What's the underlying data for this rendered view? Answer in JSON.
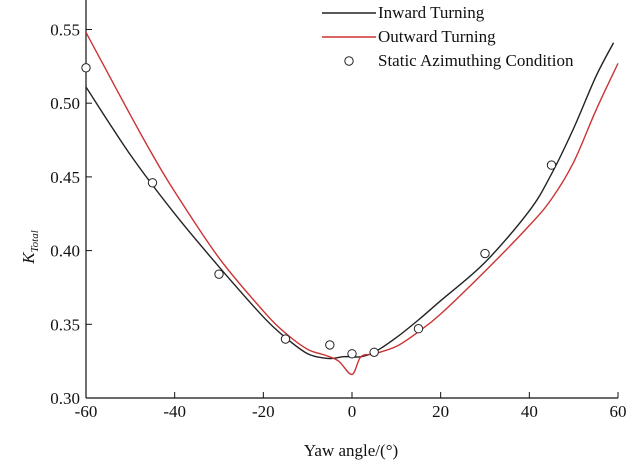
{
  "chart_data": {
    "type": "line",
    "xlabel": "Yaw angle/(°)",
    "ylabel_main": "K",
    "ylabel_sub": "Total",
    "xlim": [
      -60,
      60
    ],
    "ylim": [
      0.3,
      0.57
    ],
    "xticks": [
      -60,
      -40,
      -20,
      0,
      20,
      40,
      60
    ],
    "yticks": [
      0.3,
      0.35,
      0.4,
      0.45,
      0.5,
      0.55
    ],
    "xtick_labels": [
      "-60",
      "-40",
      "-20",
      "0",
      "20",
      "40",
      "60"
    ],
    "ytick_labels": [
      "0.30",
      "0.35",
      "0.40",
      "0.45",
      "0.50",
      "0.55"
    ],
    "grid": false,
    "legend_position": "top-right",
    "series": [
      {
        "name": "Inward Turning",
        "style": "line",
        "color": "#222222",
        "x": [
          -60,
          -50,
          -40,
          -30,
          -20,
          -15,
          -10,
          -6,
          -4,
          -2,
          0,
          2,
          5,
          10,
          15,
          20,
          30,
          40,
          45,
          50,
          55,
          59
        ],
        "y": [
          0.511,
          0.465,
          0.425,
          0.389,
          0.355,
          0.341,
          0.33,
          0.327,
          0.327,
          0.328,
          0.328,
          0.328,
          0.331,
          0.341,
          0.353,
          0.366,
          0.392,
          0.427,
          0.452,
          0.483,
          0.518,
          0.541
        ]
      },
      {
        "name": "Outward Turning",
        "style": "line",
        "color": "#cc3333",
        "x": [
          -60,
          -55,
          -50,
          -45,
          -40,
          -30,
          -20,
          -15,
          -10,
          -6,
          -3,
          0,
          2,
          5,
          10,
          15,
          20,
          30,
          40,
          45,
          50,
          55,
          60
        ],
        "y": [
          0.548,
          0.52,
          0.492,
          0.465,
          0.44,
          0.395,
          0.359,
          0.344,
          0.333,
          0.329,
          0.325,
          0.316,
          0.328,
          0.33,
          0.335,
          0.345,
          0.357,
          0.386,
          0.417,
          0.435,
          0.46,
          0.495,
          0.527
        ]
      },
      {
        "name": "Static Azimuthing Condition",
        "style": "marker",
        "color": "#222222",
        "x": [
          -60,
          -45,
          -30,
          -15,
          -5,
          0,
          5,
          15,
          30,
          45
        ],
        "y": [
          0.524,
          0.446,
          0.384,
          0.34,
          0.336,
          0.33,
          0.331,
          0.347,
          0.398,
          0.458
        ]
      }
    ]
  }
}
